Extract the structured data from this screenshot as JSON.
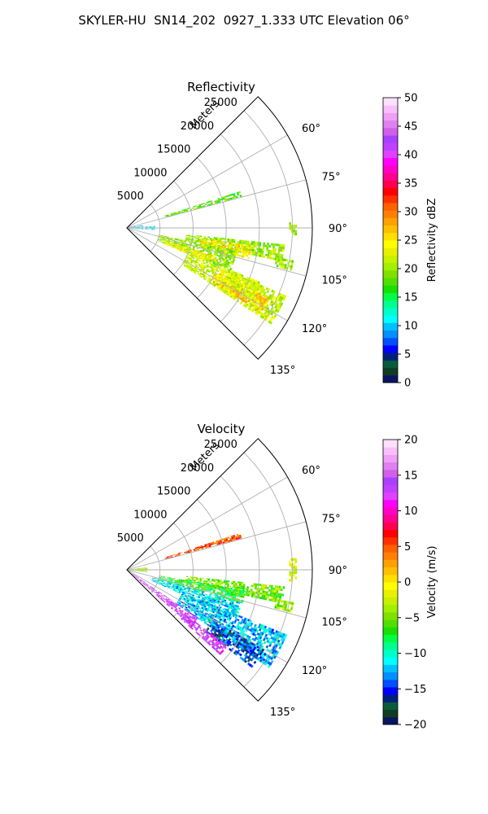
{
  "title": "SKYLER-HU  SN14_202  0927_1.333 UTC Elevation 06°",
  "chart_data": [
    {
      "type": "heatmap",
      "projection": "polar-sector",
      "title": "Reflectivity",
      "radial_axis_label": "Meters",
      "radial_ticks": [
        5000,
        10000,
        15000,
        20000,
        25000
      ],
      "radial_tick_labels": [
        "5000",
        "10000",
        "15000",
        "20000",
        "25000"
      ],
      "radial_range": [
        0,
        28000
      ],
      "azimuth_range_deg": [
        45,
        135
      ],
      "azimuth_ticks": [
        60,
        75,
        90,
        105,
        120,
        135
      ],
      "azimuth_tick_labels": [
        "60°",
        "75°",
        "90°",
        "105°",
        "120°",
        "135°"
      ],
      "grid": true,
      "colorbar": {
        "label": "Reflectivity dBZ",
        "range": [
          0,
          50
        ],
        "ticks": [
          0,
          5,
          10,
          15,
          20,
          25,
          30,
          35,
          40,
          45,
          50
        ],
        "tick_labels": [
          "0",
          "5",
          "10",
          "15",
          "20",
          "25",
          "30",
          "35",
          "40",
          "45",
          "50"
        ],
        "colors": [
          "#0a1460",
          "#0f3d24",
          "#0a5a3c",
          "#00207a",
          "#0000ff",
          "#0050ff",
          "#0090ff",
          "#00c0ff",
          "#00ffff",
          "#00ffc8",
          "#00ff90",
          "#00ff40",
          "#18e000",
          "#50e000",
          "#80e000",
          "#a0f000",
          "#c8f000",
          "#e8f000",
          "#ffff00",
          "#ffe000",
          "#ffc000",
          "#ffa000",
          "#ff8000",
          "#ff6000",
          "#ff3000",
          "#ff0000",
          "#ff0050",
          "#ff0090",
          "#ff00c8",
          "#ff00ff",
          "#e040ff",
          "#c040ff",
          "#a840ff",
          "#d060e8",
          "#e080f0",
          "#f0a0f4",
          "#f8c0fa",
          "#fce0fc"
        ]
      },
      "echo_regions": [
        {
          "az": [
            96,
            102
          ],
          "r": [
            9000,
            24000
          ],
          "value": 20
        },
        {
          "az": [
            98,
            104
          ],
          "r": [
            11000,
            19000
          ],
          "value": 25
        },
        {
          "az": [
            102,
            112
          ],
          "r": [
            5000,
            17000
          ],
          "value": 20
        },
        {
          "az": [
            108,
            113
          ],
          "r": [
            6000,
            14000
          ],
          "value": 24
        },
        {
          "az": [
            113,
            123
          ],
          "r": [
            10000,
            26000
          ],
          "value": 22
        },
        {
          "az": [
            116,
            122
          ],
          "r": [
            15000,
            24000
          ],
          "value": 26
        },
        {
          "az": [
            112,
            120
          ],
          "r": [
            16000,
            22000
          ],
          "value": 22
        },
        {
          "az": [
            72,
            74
          ],
          "r": [
            6000,
            18000
          ],
          "value": 18
        },
        {
          "az": [
            80,
            96
          ],
          "r": [
            400,
            2500
          ],
          "value": 10
        },
        {
          "az": [
            86,
            94
          ],
          "r": [
            2800,
            4200
          ],
          "value": 10
        },
        {
          "az": [
            88,
            92
          ],
          "r": [
            24500,
            25500
          ],
          "value": 20
        },
        {
          "az": [
            101,
            104
          ],
          "r": [
            23000,
            25500
          ],
          "value": 20
        }
      ]
    },
    {
      "type": "heatmap",
      "projection": "polar-sector",
      "title": "Velocity",
      "radial_axis_label": "Meters",
      "radial_ticks": [
        5000,
        10000,
        15000,
        20000,
        25000
      ],
      "radial_tick_labels": [
        "5000",
        "10000",
        "15000",
        "20000",
        "25000"
      ],
      "radial_range": [
        0,
        28000
      ],
      "azimuth_range_deg": [
        45,
        135
      ],
      "azimuth_ticks": [
        60,
        75,
        90,
        105,
        120,
        135
      ],
      "azimuth_tick_labels": [
        "60°",
        "75°",
        "90°",
        "105°",
        "120°",
        "135°"
      ],
      "grid": true,
      "colorbar": {
        "label": "Velocity (m/s)",
        "range": [
          -20,
          20
        ],
        "ticks": [
          -20,
          -15,
          -10,
          -5,
          0,
          5,
          10,
          15,
          20
        ],
        "tick_labels": [
          "−20",
          "−15",
          "−10",
          "−5",
          "0",
          "5",
          "10",
          "15",
          "20"
        ],
        "colors": [
          "#0a1460",
          "#0f3d24",
          "#0a5a3c",
          "#00207a",
          "#0000ff",
          "#0050ff",
          "#0090ff",
          "#00c0ff",
          "#00ffff",
          "#00ffc8",
          "#00ff90",
          "#00ff40",
          "#18e000",
          "#50e000",
          "#80e000",
          "#a0f000",
          "#c8f000",
          "#e8f000",
          "#ffff00",
          "#ffe000",
          "#ffc000",
          "#ffa000",
          "#ff8000",
          "#ff6000",
          "#ff3000",
          "#ff0000",
          "#ff0050",
          "#ff0090",
          "#ff00c8",
          "#ff00ff",
          "#e040ff",
          "#c040ff",
          "#a840ff",
          "#d060e8",
          "#e080f0",
          "#f0a0f4",
          "#f8c0fa",
          "#fce0fc"
        ]
      },
      "echo_regions": [
        {
          "az": [
            96,
            102
          ],
          "r": [
            9000,
            24000
          ],
          "value": -5
        },
        {
          "az": [
            100,
            106
          ],
          "r": [
            5000,
            18000
          ],
          "value": -7
        },
        {
          "az": [
            106,
            114
          ],
          "r": [
            4000,
            18000
          ],
          "value": -11
        },
        {
          "az": [
            112,
            124
          ],
          "r": [
            9000,
            26000
          ],
          "value": -12
        },
        {
          "az": [
            120,
            128
          ],
          "r": [
            15000,
            24000
          ],
          "value": -15
        },
        {
          "az": [
            124,
            131
          ],
          "r": [
            1000,
            13000
          ],
          "value": 14
        },
        {
          "az": [
            127,
            132
          ],
          "r": [
            11000,
            19000
          ],
          "value": 13
        },
        {
          "az": [
            72,
            74
          ],
          "r": [
            6000,
            18000
          ],
          "value": 5
        },
        {
          "az": [
            82,
            96
          ],
          "r": [
            400,
            3000
          ],
          "value": -4
        },
        {
          "az": [
            86,
            94
          ],
          "r": [
            24500,
            25500
          ],
          "value": -2
        },
        {
          "az": [
            101,
            104
          ],
          "r": [
            23000,
            25500
          ],
          "value": -4
        }
      ]
    }
  ]
}
